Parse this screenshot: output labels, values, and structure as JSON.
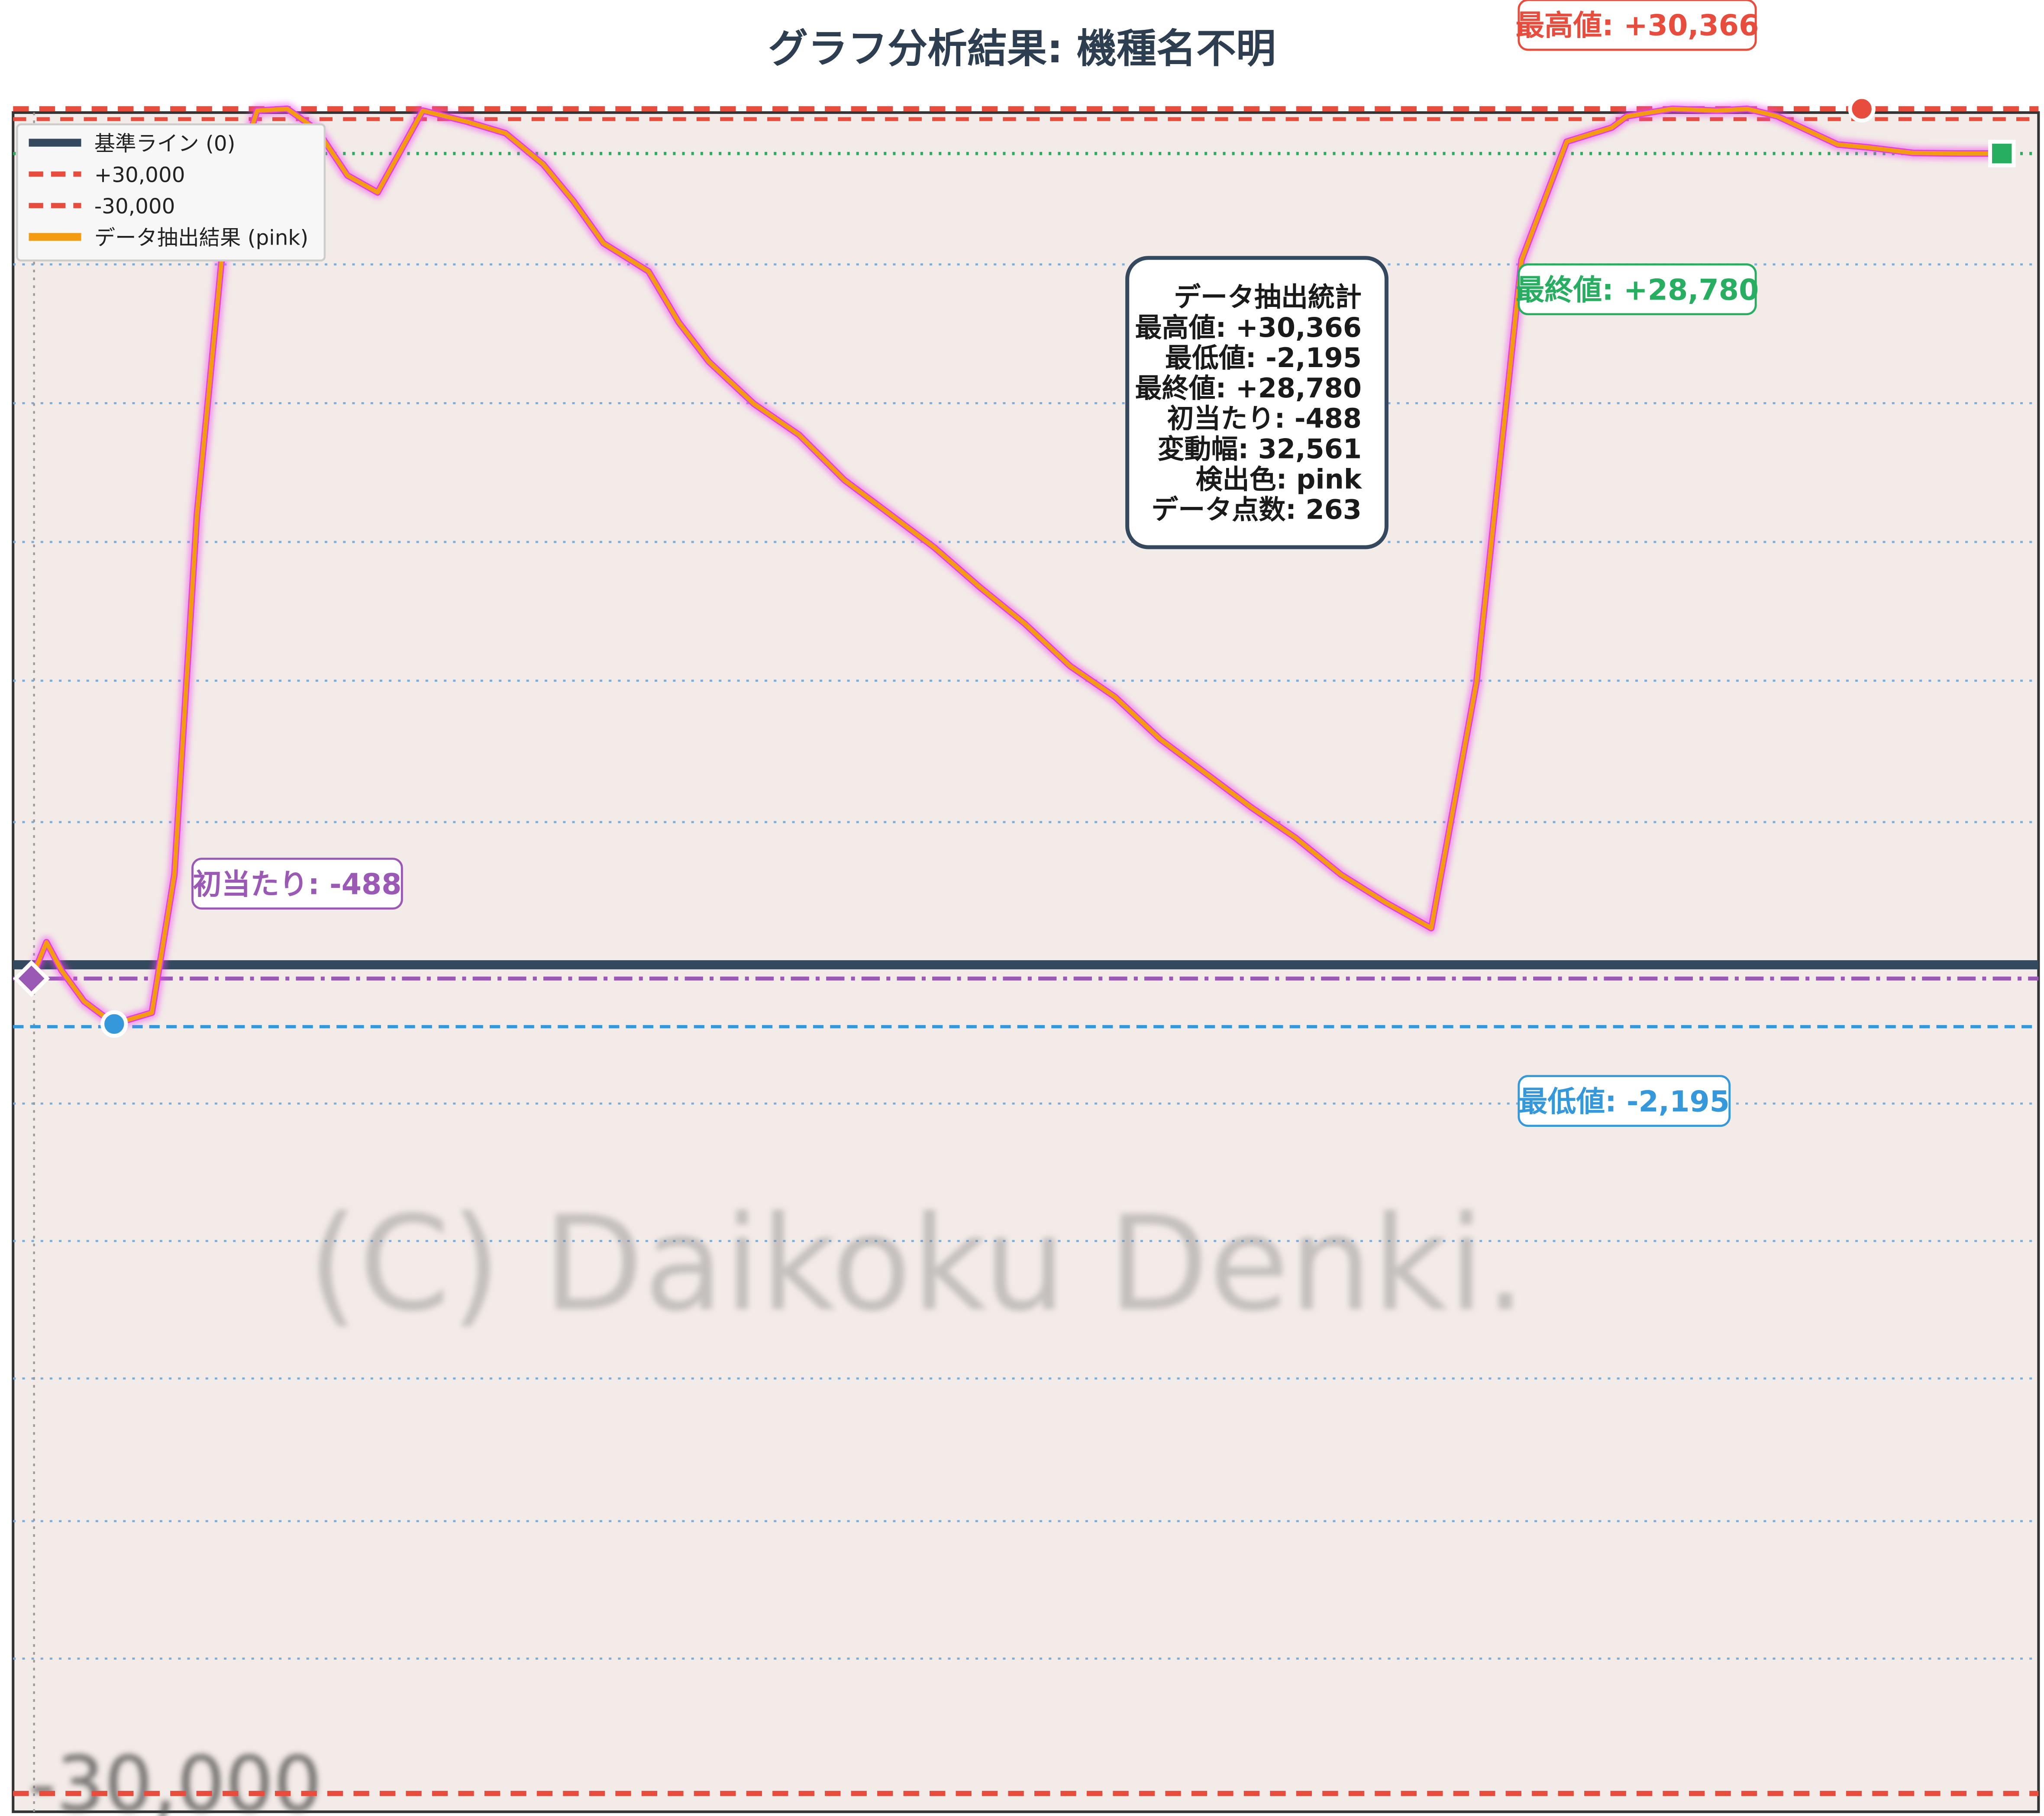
{
  "title": "グラフ分析結果: 機種名不明",
  "watermark": "(C) Daikoku Denki.",
  "background_axis_label": "-30,000",
  "legend": [
    {
      "label": "基準ライン (0)",
      "color": "#34495e",
      "style": "solid"
    },
    {
      "label": "+30,000",
      "color": "#e74c3c",
      "style": "dashed"
    },
    {
      "label": "-30,000",
      "color": "#e74c3c",
      "style": "dashed"
    },
    {
      "label": "データ抽出結果 (pink)",
      "color": "#f39c12",
      "style": "solid"
    }
  ],
  "annotations": {
    "max": {
      "text": "最高値: +30,366",
      "color": "#e74c3c"
    },
    "final": {
      "text": "最終値: +28,780",
      "color": "#27ae60"
    },
    "min": {
      "text": "最低値: -2,195",
      "color": "#3498db"
    },
    "first_hit": {
      "text": "初当たり: -488",
      "color": "#9b59b6"
    }
  },
  "stats_box": [
    "データ抽出統計",
    "最高値: +30,366",
    "最低値: -2,195",
    "最終値: +28,780",
    "初当たり: -488",
    "変動幅: 32,561",
    "検出色: pink",
    "データ点数: 263"
  ],
  "chart_data": {
    "type": "line",
    "title": "グラフ分析結果: 機種名不明",
    "ylim": [
      -30000,
      30000
    ],
    "grid": true,
    "legend_position": "top-left",
    "reference_lines": [
      {
        "label": "基準ライン (0)",
        "value": 0
      },
      {
        "label": "+30,000",
        "value": 30000
      },
      {
        "label": "-30,000",
        "value": -30000
      },
      {
        "label": "最高値",
        "value": 30366
      },
      {
        "label": "最終値",
        "value": 28780
      },
      {
        "label": "最低値",
        "value": -2195
      },
      {
        "label": "初当たり",
        "value": -488
      }
    ],
    "series": [
      {
        "name": "データ抽出結果 (pink)",
        "x": [
          0,
          2,
          4,
          7,
          11,
          16,
          19,
          22,
          26,
          30,
          34,
          38,
          42,
          46,
          52,
          58,
          63,
          68,
          72,
          76,
          82,
          86,
          90,
          96,
          102,
          108,
          114,
          120,
          126,
          132,
          138,
          144,
          150,
          156,
          162,
          168,
          174,
          180,
          186,
          192,
          198,
          204,
          210,
          212,
          218,
          224,
          228,
          232,
          236,
          240,
          244,
          250,
          256,
          262
        ],
        "y": [
          -500,
          800,
          -200,
          -1300,
          -2100,
          -1700,
          3200,
          16000,
          27000,
          30300,
          30366,
          29600,
          28000,
          27400,
          30300,
          29900,
          29500,
          28400,
          27100,
          25600,
          24600,
          22800,
          21400,
          19900,
          18800,
          17200,
          16000,
          14800,
          13400,
          12100,
          10600,
          9500,
          8000,
          6800,
          5600,
          4500,
          3200,
          2200,
          1300,
          10000,
          25000,
          29200,
          29700,
          30100,
          30366,
          30300,
          30366,
          30100,
          29600,
          29100,
          29000,
          28800,
          28780,
          28780
        ]
      }
    ]
  }
}
